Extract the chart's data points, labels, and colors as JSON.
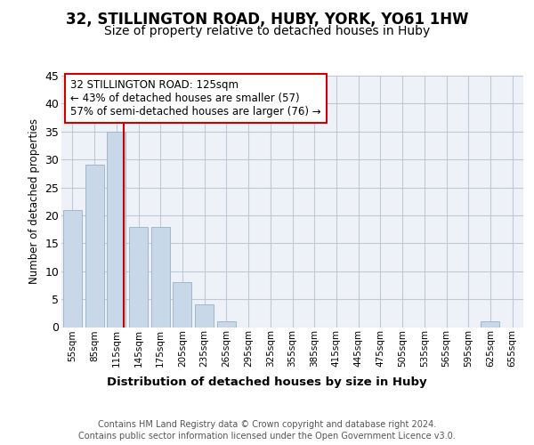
{
  "title": "32, STILLINGTON ROAD, HUBY, YORK, YO61 1HW",
  "subtitle": "Size of property relative to detached houses in Huby",
  "xlabel": "Distribution of detached houses by size in Huby",
  "ylabel": "Number of detached properties",
  "categories": [
    "55sqm",
    "85sqm",
    "115sqm",
    "145sqm",
    "175sqm",
    "205sqm",
    "235sqm",
    "265sqm",
    "295sqm",
    "325sqm",
    "355sqm",
    "385sqm",
    "415sqm",
    "445sqm",
    "475sqm",
    "505sqm",
    "535sqm",
    "565sqm",
    "595sqm",
    "625sqm",
    "655sqm"
  ],
  "values": [
    21,
    29,
    35,
    18,
    18,
    8,
    4,
    1,
    0,
    0,
    0,
    0,
    0,
    0,
    0,
    0,
    0,
    0,
    0,
    1,
    0
  ],
  "bar_color": "#c8d8e8",
  "bar_edge_color": "#a0b8cc",
  "vline_x": 2.333,
  "vline_color": "#cc0000",
  "ylim": [
    0,
    45
  ],
  "yticks": [
    0,
    5,
    10,
    15,
    20,
    25,
    30,
    35,
    40,
    45
  ],
  "annotation_title": "32 STILLINGTON ROAD: 125sqm",
  "annotation_line1": "← 43% of detached houses are smaller (57)",
  "annotation_line2": "57% of semi-detached houses are larger (76) →",
  "annotation_box_edge": "#cc0000",
  "footer1": "Contains HM Land Registry data © Crown copyright and database right 2024.",
  "footer2": "Contains public sector information licensed under the Open Government Licence v3.0.",
  "bg_color": "#eef2f8",
  "grid_color": "#c0c8d8",
  "title_fontsize": 12,
  "subtitle_fontsize": 10
}
